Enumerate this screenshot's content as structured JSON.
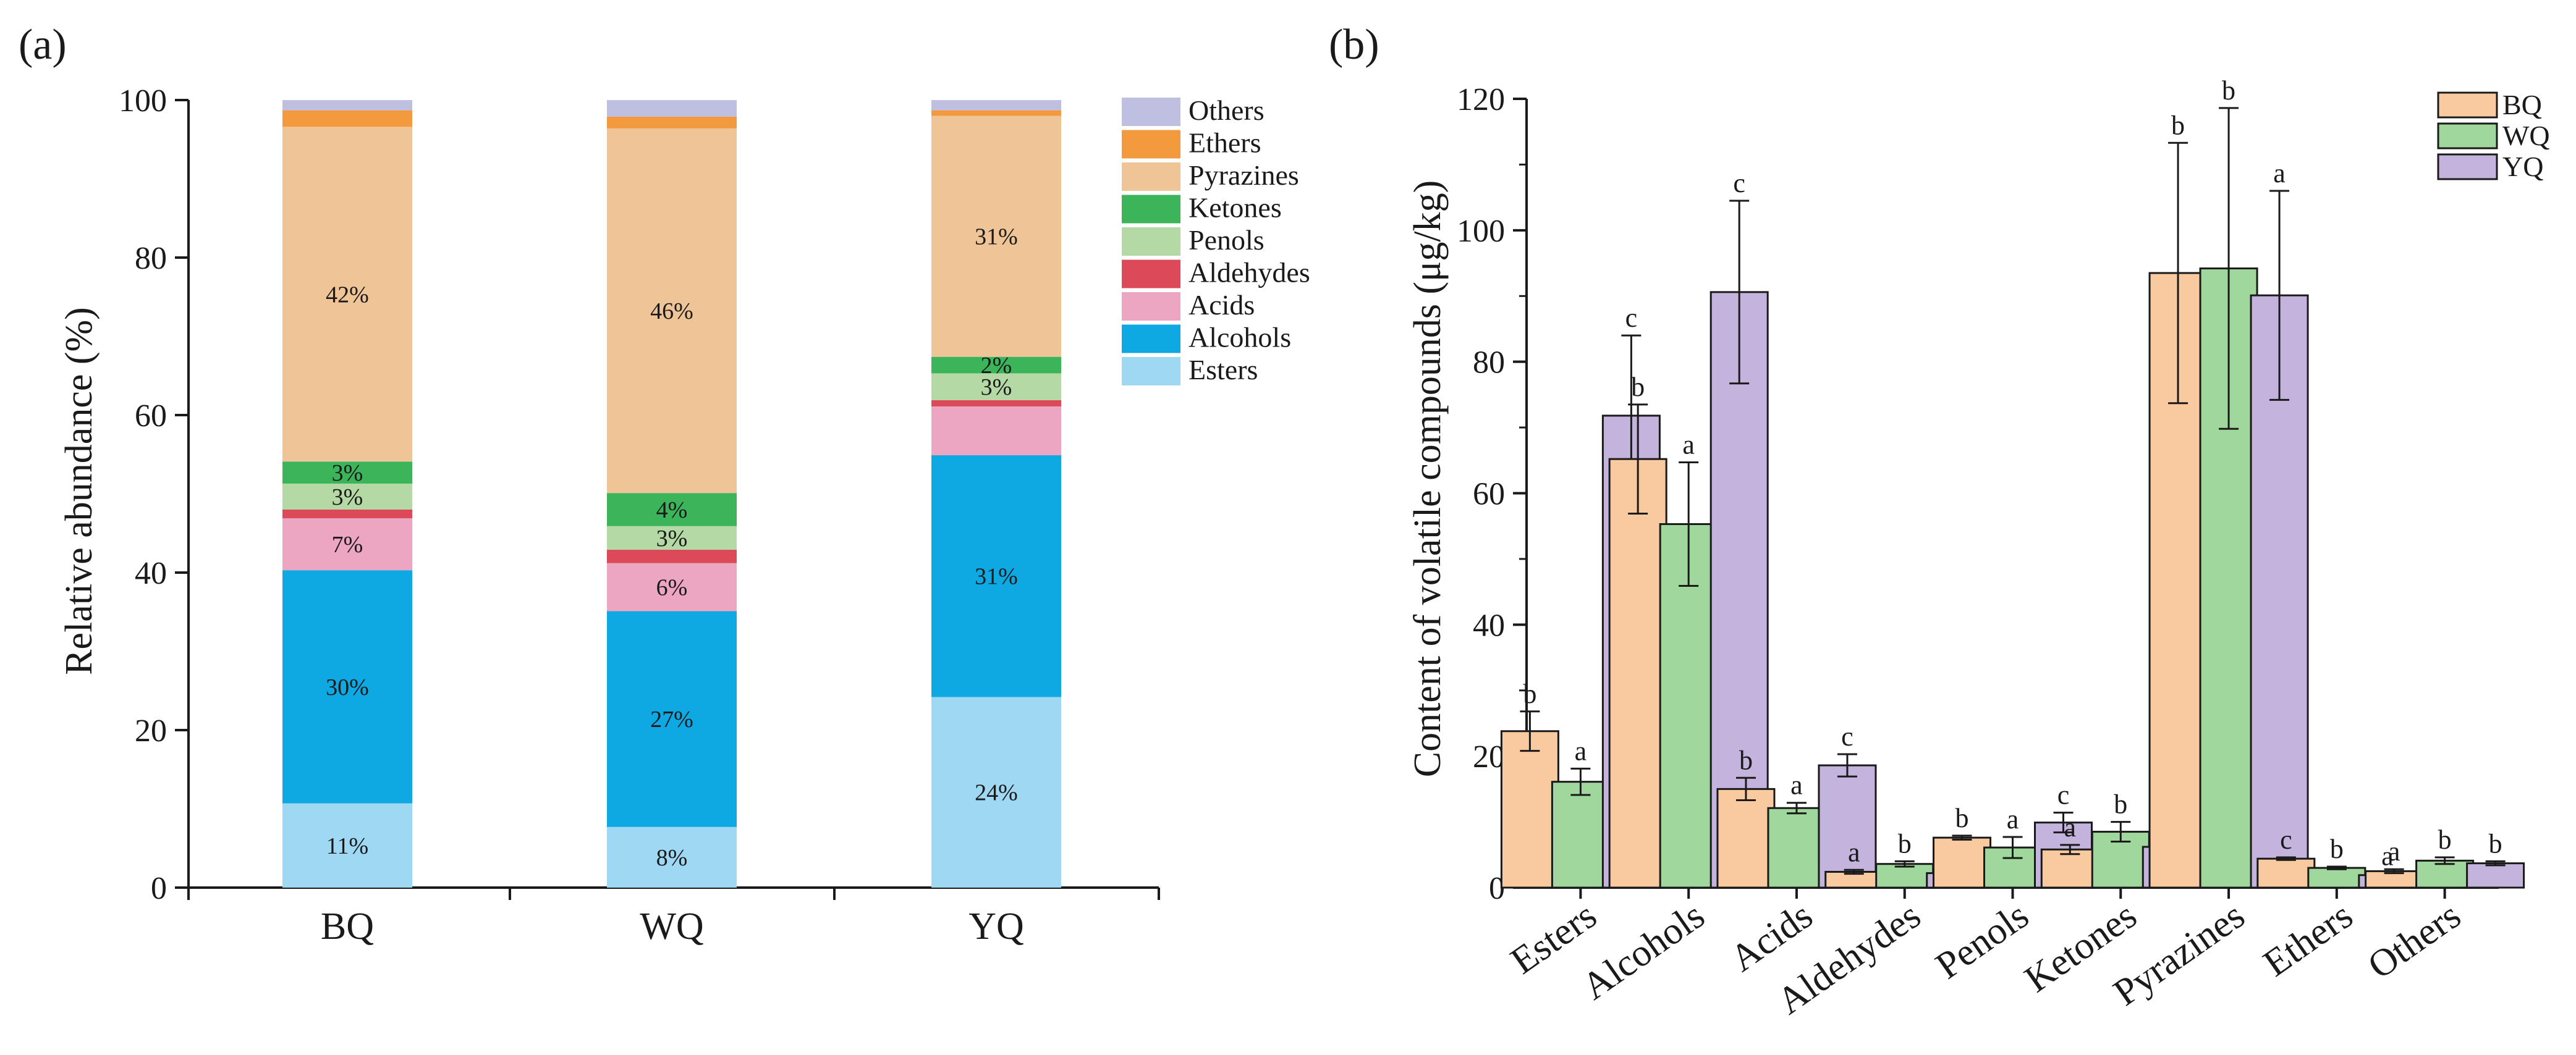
{
  "chart_data": [
    {
      "type": "bar",
      "stacked": true,
      "panel_label": "(a)",
      "categories": [
        "BQ",
        "WQ",
        "YQ"
      ],
      "ylabel": "Relative abundance (%)",
      "xlabel": "",
      "ylim": [
        0,
        100
      ],
      "yticks": [
        "0",
        "20",
        "40",
        "60",
        "80",
        "100"
      ],
      "legend_position": "top-right",
      "series": [
        {
          "name": "Esters",
          "color": "#9fd8f2",
          "values": [
            10.7,
            7.7,
            24.2
          ],
          "labels": [
            "11%",
            "8%",
            "24%"
          ]
        },
        {
          "name": "Alcohols",
          "color": "#0ea8e3",
          "values": [
            29.6,
            27.4,
            30.7
          ],
          "labels": [
            "30%",
            "27%",
            "31%"
          ]
        },
        {
          "name": "Acids",
          "color": "#eda6c2",
          "values": [
            6.6,
            6.1,
            6.2
          ],
          "labels": [
            "7%",
            "6%",
            ""
          ]
        },
        {
          "name": "Aldehydes",
          "color": "#dc4a5a",
          "values": [
            1.1,
            1.7,
            0.8
          ],
          "labels": [
            "",
            "",
            ""
          ]
        },
        {
          "name": "Penols",
          "color": "#b5d9a4",
          "values": [
            3.3,
            3.0,
            3.4
          ],
          "labels": [
            "3%",
            "3%",
            "3%"
          ]
        },
        {
          "name": "Ketones",
          "color": "#3bb45a",
          "values": [
            2.8,
            4.2,
            2.1
          ],
          "labels": [
            "3%",
            "4%",
            "2%"
          ]
        },
        {
          "name": "Pyrazines",
          "color": "#efc497",
          "values": [
            42.5,
            46.3,
            30.6
          ],
          "labels": [
            "42%",
            "46%",
            "31%"
          ]
        },
        {
          "name": "Ethers",
          "color": "#f39a3e",
          "values": [
            2.1,
            1.5,
            0.7
          ],
          "labels": [
            "",
            "",
            ""
          ]
        },
        {
          "name": "Others",
          "color": "#bfbfe2",
          "values": [
            1.3,
            2.1,
            1.3
          ],
          "labels": [
            "",
            "",
            ""
          ]
        }
      ],
      "legend_order": [
        "Others",
        "Ethers",
        "Pyrazines",
        "Ketones",
        "Penols",
        "Aldehydes",
        "Acids",
        "Alcohols",
        "Esters"
      ]
    },
    {
      "type": "bar",
      "grouped": true,
      "panel_label": "(b)",
      "categories": [
        "Esters",
        "Alcohols",
        "Acids",
        "Aldehydes",
        "Penols",
        "Ketones",
        "Pyrazines",
        "Ethers",
        "Others"
      ],
      "ylabel": "Content of volatile compounds (μg/kg)",
      "xlabel": "",
      "ylim": [
        0,
        120
      ],
      "yticks": [
        "0",
        "20",
        "40",
        "60",
        "80",
        "100",
        "120"
      ],
      "legend_position": "top-right",
      "series": [
        {
          "name": "BQ",
          "color": "#f9c9a0",
          "values": [
            23.8,
            65.2,
            15.0,
            2.4,
            7.6,
            5.8,
            93.5,
            4.4,
            2.5
          ],
          "errors": [
            3.0,
            8.3,
            1.7,
            0.3,
            0.3,
            0.7,
            19.8,
            0.2,
            0.3
          ],
          "letters": [
            "b",
            "b",
            "b",
            "a",
            "b",
            "a",
            "b",
            "c",
            "a"
          ]
        },
        {
          "name": "WQ",
          "color": "#9fd79c",
          "values": [
            16.1,
            55.3,
            12.1,
            3.6,
            6.1,
            8.5,
            94.2,
            3.0,
            4.1
          ],
          "errors": [
            2.0,
            9.4,
            0.8,
            0.4,
            1.6,
            1.5,
            24.4,
            0.2,
            0.5
          ],
          "letters": [
            "a",
            "a",
            "a",
            "b",
            "a",
            "b",
            "b",
            "b",
            "b"
          ]
        },
        {
          "name": "YQ",
          "color": "#c4b3dd",
          "values": [
            71.8,
            90.6,
            18.6,
            2.2,
            9.9,
            6.2,
            90.1,
            1.9,
            3.7
          ],
          "errors": [
            12.2,
            13.9,
            1.7,
            0.2,
            1.5,
            2.7,
            15.9,
            0.2,
            0.3
          ],
          "letters": [
            "c",
            "c",
            "c",
            "a",
            "c",
            "a",
            "a",
            "a",
            "b"
          ]
        }
      ]
    }
  ]
}
